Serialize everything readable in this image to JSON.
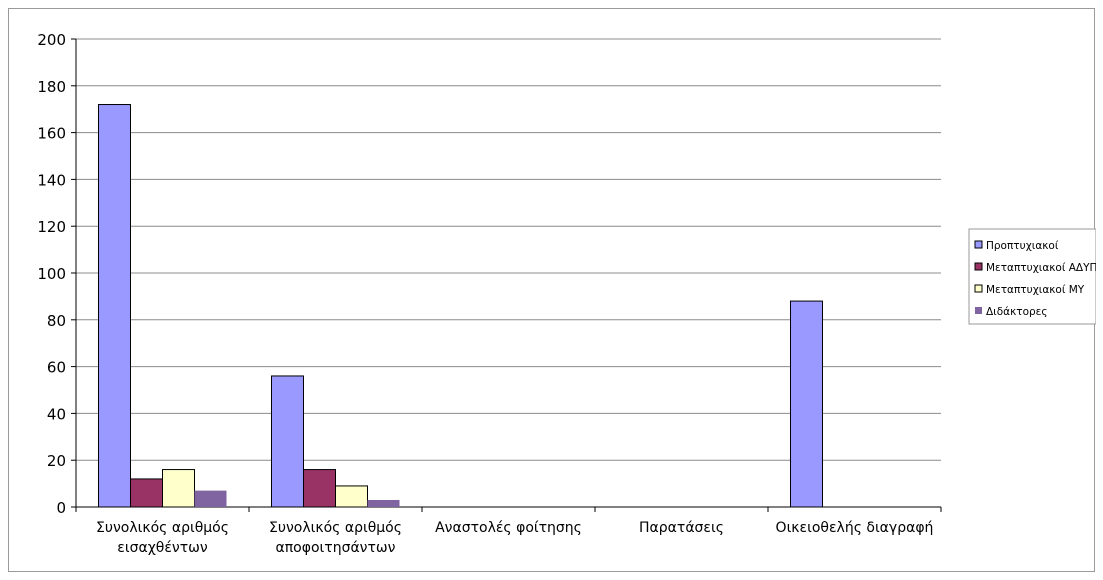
{
  "chart_data": {
    "type": "bar",
    "title": "",
    "xlabel": "",
    "ylabel": "",
    "ylim": [
      0,
      200
    ],
    "yticks": [
      0,
      20,
      40,
      60,
      80,
      100,
      120,
      140,
      160,
      180,
      200
    ],
    "grid": true,
    "legend_position": "right",
    "categories": [
      [
        "Συνολικός αριθμός",
        "εισαχθέντων"
      ],
      [
        "Συνολικός αριθμός",
        "αποφοιτησάντων"
      ],
      [
        "Αναστολές φοίτησης"
      ],
      [
        "Παρατάσεις"
      ],
      [
        "Οικειοθελής διαγραφή"
      ]
    ],
    "series": [
      {
        "name": "Προπτυχιακοί",
        "color": "#9999ff",
        "values": [
          172,
          56,
          0,
          0,
          88
        ]
      },
      {
        "name": "Μεταπτυχιακοί ΑΔΥΠ",
        "color": "#993366",
        "values": [
          12,
          16,
          0,
          0,
          0
        ]
      },
      {
        "name": "Μεταπτυχιακοί ΜΥ",
        "color": "#ffffcc",
        "values": [
          16,
          9,
          0,
          0,
          0
        ]
      },
      {
        "name": "Διδάκτορες",
        "color": "#8064a2",
        "values": [
          7,
          3,
          0,
          0,
          0
        ]
      }
    ]
  }
}
